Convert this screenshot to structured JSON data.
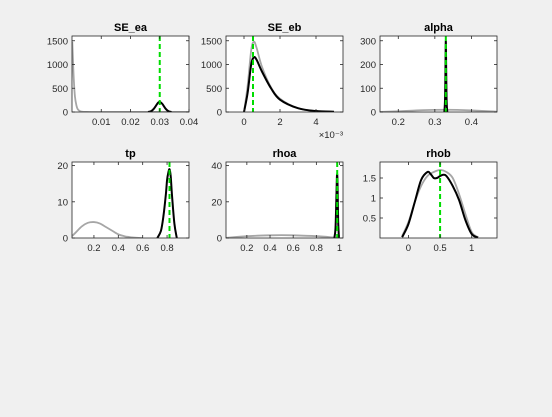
{
  "figure": {
    "background": "#f0f0f0"
  },
  "style": {
    "prior_color": "#a6a6a6",
    "posterior_color": "#000000",
    "mode_color": "#00dd00"
  },
  "chart_data": [
    {
      "type": "line",
      "title": "SE_ea",
      "xlim": [
        0.0,
        0.04
      ],
      "ylim": [
        0,
        1600
      ],
      "xticks": [
        {
          "v": 0.01,
          "label": "0.01"
        },
        {
          "v": 0.02,
          "label": "0.02"
        },
        {
          "v": 0.03,
          "label": "0.03"
        },
        {
          "v": 0.04,
          "label": "0.04"
        }
      ],
      "yticks": [
        {
          "v": 0,
          "label": "0"
        },
        {
          "v": 500,
          "label": "500"
        },
        {
          "v": 1000,
          "label": "1000"
        },
        {
          "v": 1500,
          "label": "1500"
        }
      ],
      "exponent": "",
      "mode": 0.03,
      "series": [
        {
          "role": "prior",
          "x": [
            0.0001,
            0.0003,
            0.0006,
            0.001,
            0.0015,
            0.002,
            0.003,
            0.005,
            0.008,
            0.012,
            0.02,
            0.03,
            0.04
          ],
          "y": [
            1480,
            1150,
            700,
            330,
            140,
            55,
            12,
            2,
            0,
            0,
            0,
            0,
            0
          ]
        },
        {
          "role": "posterior",
          "x": [
            0.026,
            0.027,
            0.028,
            0.029,
            0.0295,
            0.03,
            0.0305,
            0.031,
            0.032,
            0.033,
            0.034
          ],
          "y": [
            0,
            15,
            70,
            160,
            200,
            210,
            195,
            160,
            70,
            15,
            0
          ]
        }
      ]
    },
    {
      "type": "line",
      "title": "SE_eb",
      "xlim": [
        -0.001,
        0.0055
      ],
      "ylim": [
        0,
        1600
      ],
      "xticks": [
        {
          "v": 0,
          "label": "0"
        },
        {
          "v": 0.002,
          "label": "2"
        },
        {
          "v": 0.004,
          "label": "4"
        }
      ],
      "yticks": [
        {
          "v": 0,
          "label": "0"
        },
        {
          "v": 500,
          "label": "500"
        },
        {
          "v": 1000,
          "label": "1000"
        },
        {
          "v": 1500,
          "label": "1500"
        }
      ],
      "exponent": "×10⁻³",
      "mode": 0.0005,
      "series": [
        {
          "role": "prior",
          "x": [
            0.0,
            0.0002,
            0.0004,
            0.00055,
            0.0007,
            0.001,
            0.0015,
            0.002,
            0.003,
            0.004,
            0.005
          ],
          "y": [
            0,
            550,
            1300,
            1480,
            1350,
            950,
            520,
            280,
            80,
            20,
            5
          ]
        },
        {
          "role": "posterior",
          "x": [
            0.0,
            0.0002,
            0.0004,
            0.00055,
            0.0007,
            0.001,
            0.0015,
            0.002,
            0.003,
            0.004,
            0.005
          ],
          "y": [
            0,
            400,
            1000,
            1150,
            1100,
            850,
            500,
            260,
            80,
            20,
            5
          ]
        }
      ]
    },
    {
      "type": "line",
      "title": "alpha",
      "xlim": [
        0.15,
        0.47
      ],
      "ylim": [
        0,
        320
      ],
      "xticks": [
        {
          "v": 0.2,
          "label": "0.2"
        },
        {
          "v": 0.3,
          "label": "0.3"
        },
        {
          "v": 0.4,
          "label": "0.4"
        }
      ],
      "yticks": [
        {
          "v": 0,
          "label": "0"
        },
        {
          "v": 100,
          "label": "100"
        },
        {
          "v": 200,
          "label": "200"
        },
        {
          "v": 300,
          "label": "300"
        }
      ],
      "exponent": "",
      "mode": 0.33,
      "series": [
        {
          "role": "prior",
          "x": [
            0.15,
            0.2,
            0.25,
            0.3,
            0.33,
            0.36,
            0.4,
            0.45,
            0.47
          ],
          "y": [
            0,
            3,
            7,
            9,
            9.5,
            9,
            7,
            3,
            1
          ]
        },
        {
          "role": "posterior",
          "x": [
            0.326,
            0.328,
            0.3295,
            0.33,
            0.3305,
            0.332,
            0.334
          ],
          "y": [
            0,
            60,
            250,
            300,
            250,
            60,
            0
          ]
        }
      ]
    },
    {
      "type": "line",
      "title": "tp",
      "xlim": [
        0.02,
        0.98
      ],
      "ylim": [
        0,
        21
      ],
      "xticks": [
        {
          "v": 0.2,
          "label": "0.2"
        },
        {
          "v": 0.4,
          "label": "0.4"
        },
        {
          "v": 0.6,
          "label": "0.6"
        },
        {
          "v": 0.8,
          "label": "0.8"
        }
      ],
      "yticks": [
        {
          "v": 0,
          "label": "0"
        },
        {
          "v": 10,
          "label": "10"
        },
        {
          "v": 20,
          "label": "20"
        }
      ],
      "exponent": "",
      "mode": 0.82,
      "series": [
        {
          "role": "prior",
          "x": [
            0.02,
            0.05,
            0.1,
            0.15,
            0.2,
            0.25,
            0.3,
            0.35,
            0.4,
            0.45,
            0.5,
            0.55,
            0.6
          ],
          "y": [
            0.5,
            1.5,
            3.2,
            4.2,
            4.4,
            4.0,
            3.0,
            2.0,
            1.0,
            0.5,
            0.2,
            0.05,
            0
          ]
        },
        {
          "role": "posterior",
          "x": [
            0.72,
            0.75,
            0.77,
            0.79,
            0.8,
            0.81,
            0.82,
            0.83,
            0.84,
            0.86,
            0.88
          ],
          "y": [
            0,
            2,
            6,
            12,
            16,
            18,
            19,
            17,
            12,
            4,
            0
          ]
        }
      ]
    },
    {
      "type": "line",
      "title": "rhoa",
      "xlim": [
        0.02,
        1.03
      ],
      "ylim": [
        0,
        42
      ],
      "xticks": [
        {
          "v": 0.2,
          "label": "0.2"
        },
        {
          "v": 0.4,
          "label": "0.4"
        },
        {
          "v": 0.6,
          "label": "0.6"
        },
        {
          "v": 0.8,
          "label": "0.8"
        },
        {
          "v": 1.0,
          "label": "1"
        }
      ],
      "yticks": [
        {
          "v": 0,
          "label": "0"
        },
        {
          "v": 20,
          "label": "20"
        },
        {
          "v": 40,
          "label": "40"
        }
      ],
      "exponent": "",
      "mode": 0.98,
      "series": [
        {
          "role": "prior",
          "x": [
            0.02,
            0.2,
            0.4,
            0.5,
            0.6,
            0.8,
            0.95,
            1.0
          ],
          "y": [
            0.1,
            1.0,
            1.5,
            1.6,
            1.5,
            1.0,
            0.3,
            0
          ]
        },
        {
          "role": "posterior",
          "x": [
            0.955,
            0.965,
            0.972,
            0.977,
            0.98,
            0.983,
            0.988,
            0.995
          ],
          "y": [
            0,
            5,
            20,
            33,
            35,
            30,
            10,
            0
          ]
        }
      ]
    },
    {
      "type": "line",
      "title": "rhob",
      "xlim": [
        -0.45,
        1.4
      ],
      "ylim": [
        0,
        1.9
      ],
      "xticks": [
        {
          "v": 0,
          "label": "0"
        },
        {
          "v": 0.5,
          "label": "0.5"
        },
        {
          "v": 1.0,
          "label": "1"
        }
      ],
      "yticks": [
        {
          "v": 0.5,
          "label": "0.5"
        },
        {
          "v": 1.0,
          "label": "1"
        },
        {
          "v": 1.5,
          "label": "1.5"
        }
      ],
      "exponent": "",
      "mode": 0.5,
      "series": [
        {
          "role": "prior",
          "x": [
            -0.1,
            0.0,
            0.1,
            0.2,
            0.3,
            0.4,
            0.5,
            0.6,
            0.7,
            0.8,
            0.9,
            1.0,
            1.1
          ],
          "y": [
            0.05,
            0.4,
            0.9,
            1.3,
            1.55,
            1.65,
            1.7,
            1.65,
            1.5,
            1.1,
            0.6,
            0.15,
            0.02
          ]
        },
        {
          "role": "posterior",
          "x": [
            -0.1,
            0.0,
            0.1,
            0.2,
            0.3,
            0.35,
            0.4,
            0.45,
            0.5,
            0.55,
            0.6,
            0.7,
            0.8,
            0.9,
            1.0,
            1.1
          ],
          "y": [
            0.02,
            0.35,
            0.9,
            1.45,
            1.65,
            1.6,
            1.5,
            1.5,
            1.55,
            1.58,
            1.55,
            1.3,
            0.95,
            0.45,
            0.1,
            0.01
          ]
        }
      ]
    }
  ]
}
